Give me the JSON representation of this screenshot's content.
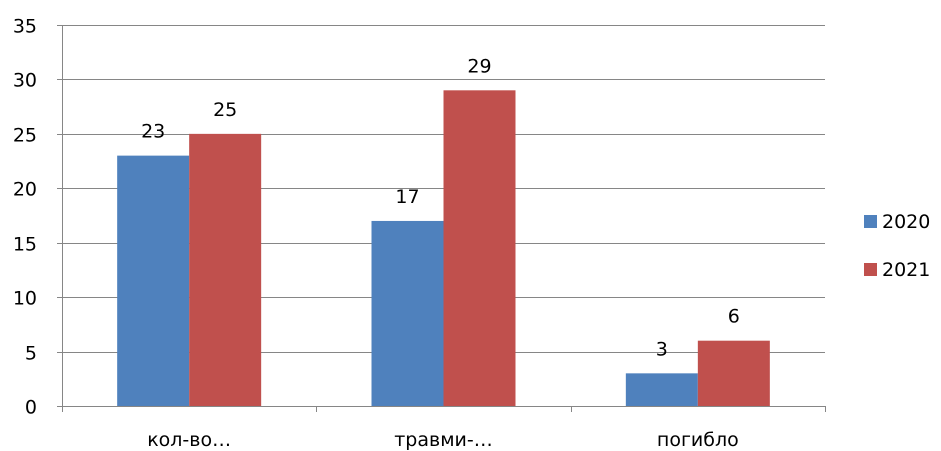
{
  "chart_data": {
    "type": "bar",
    "title": "",
    "xlabel": "",
    "ylabel": "",
    "categories": [
      "кол-во…",
      "травми-…",
      "погибло"
    ],
    "series": [
      {
        "name": "2020",
        "color": "#4f81bd",
        "values": [
          23,
          17,
          3
        ]
      },
      {
        "name": "2021",
        "color": "#c0504d",
        "values": [
          25,
          29,
          6
        ]
      }
    ],
    "ylim": [
      0,
      35
    ],
    "yticks": [
      0,
      5,
      10,
      15,
      20,
      25,
      30,
      35
    ],
    "grid": true,
    "legend_position": "right",
    "data_labels": true
  }
}
